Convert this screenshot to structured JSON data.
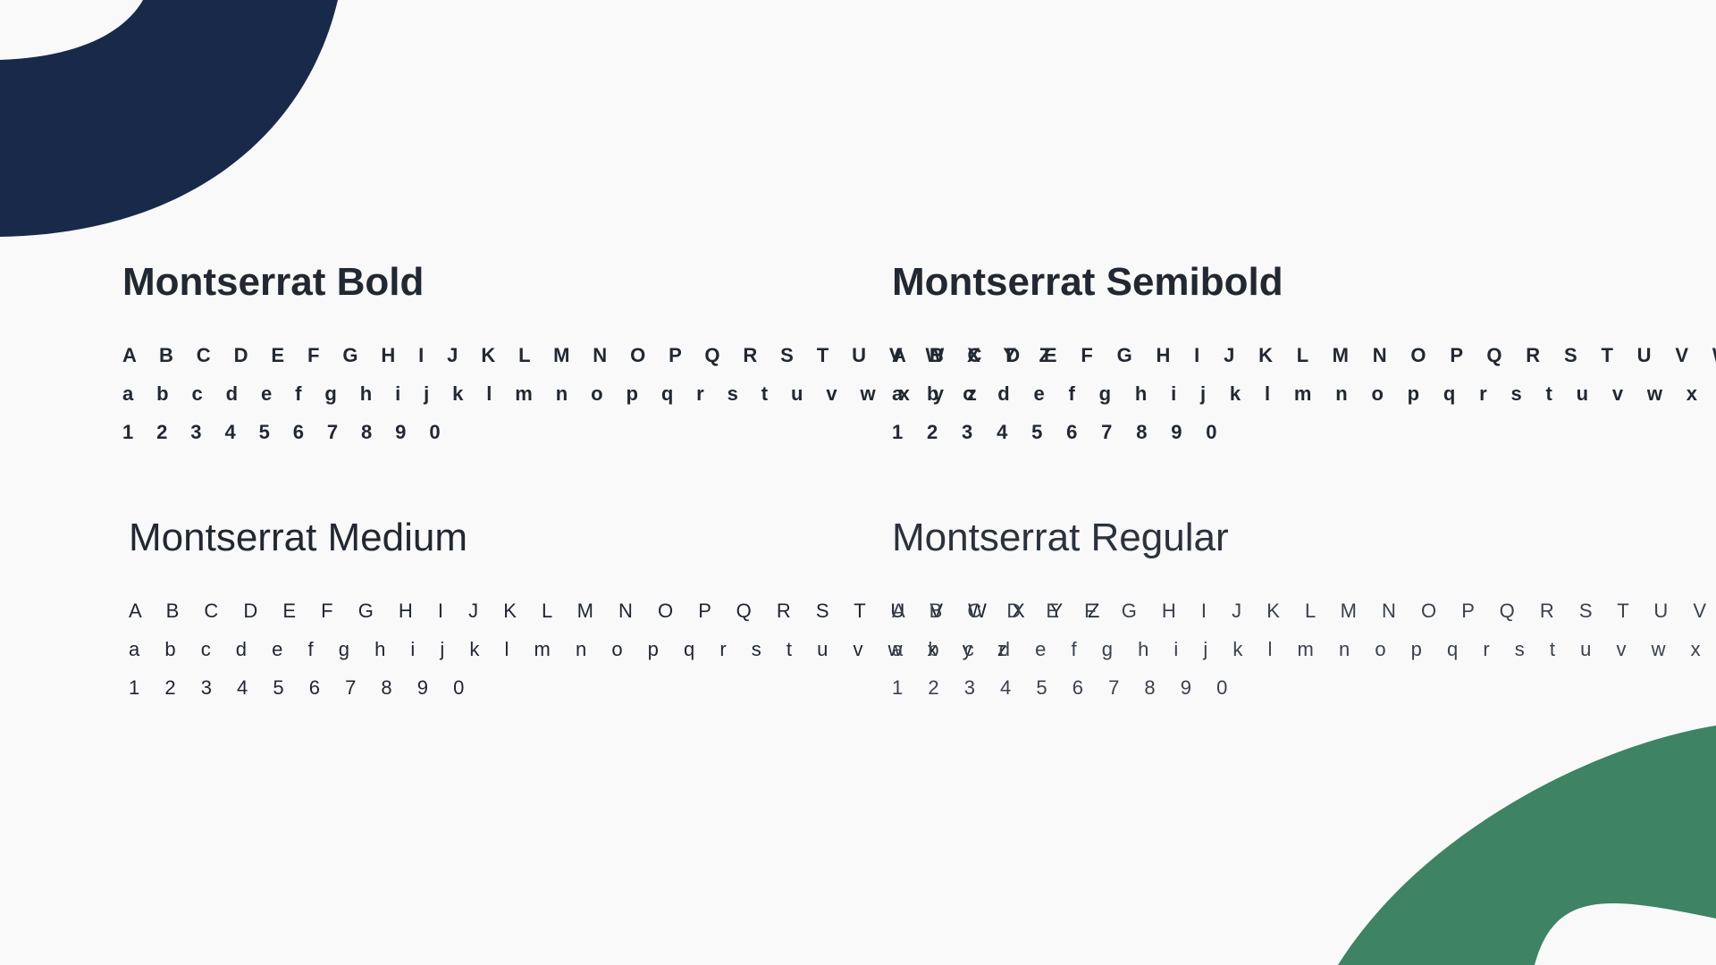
{
  "colors": {
    "background": "#f9f9fa",
    "text": "#222831",
    "navy_shape": "#18294a",
    "green_shape": "#3d8364"
  },
  "fonts": [
    {
      "title": "Montserrat Bold",
      "uppercase": "A B C D E F G H I J K L M N O P Q R S T U V W X Y Z",
      "lowercase": "a b c d e f g h i j k l m n o p q r s t u v w x y z",
      "numerals": "1 2 3 4 5 6 7 8 9 0"
    },
    {
      "title": "Montserrat Semibold",
      "uppercase": "A B C D E F G H I J K L M N O P Q R S T U V W X Y Z",
      "lowercase": "a b c d e f g h i j k l m n o p q r s t u v w x y z",
      "numerals": "1 2 3 4 5 6 7 8 9 0"
    },
    {
      "title": "Montserrat Medium",
      "uppercase": "A B C D E F G H I J K L M N O P Q R S T U V W X Y Z",
      "lowercase": "a b c d e f g h i j k l m n o p q r s t u v w x y z",
      "numerals": "1 2 3 4 5 6 7 8 9 0"
    },
    {
      "title": "Montserrat Regular",
      "uppercase": "A B C D E F G H I J K L M N O P Q R S T U V W X Y Z",
      "lowercase": "a b c d e f g h i j k l m n o p q r s t u v w x y z",
      "numerals": "1 2 3 4 5 6 7 8 9 0"
    }
  ]
}
